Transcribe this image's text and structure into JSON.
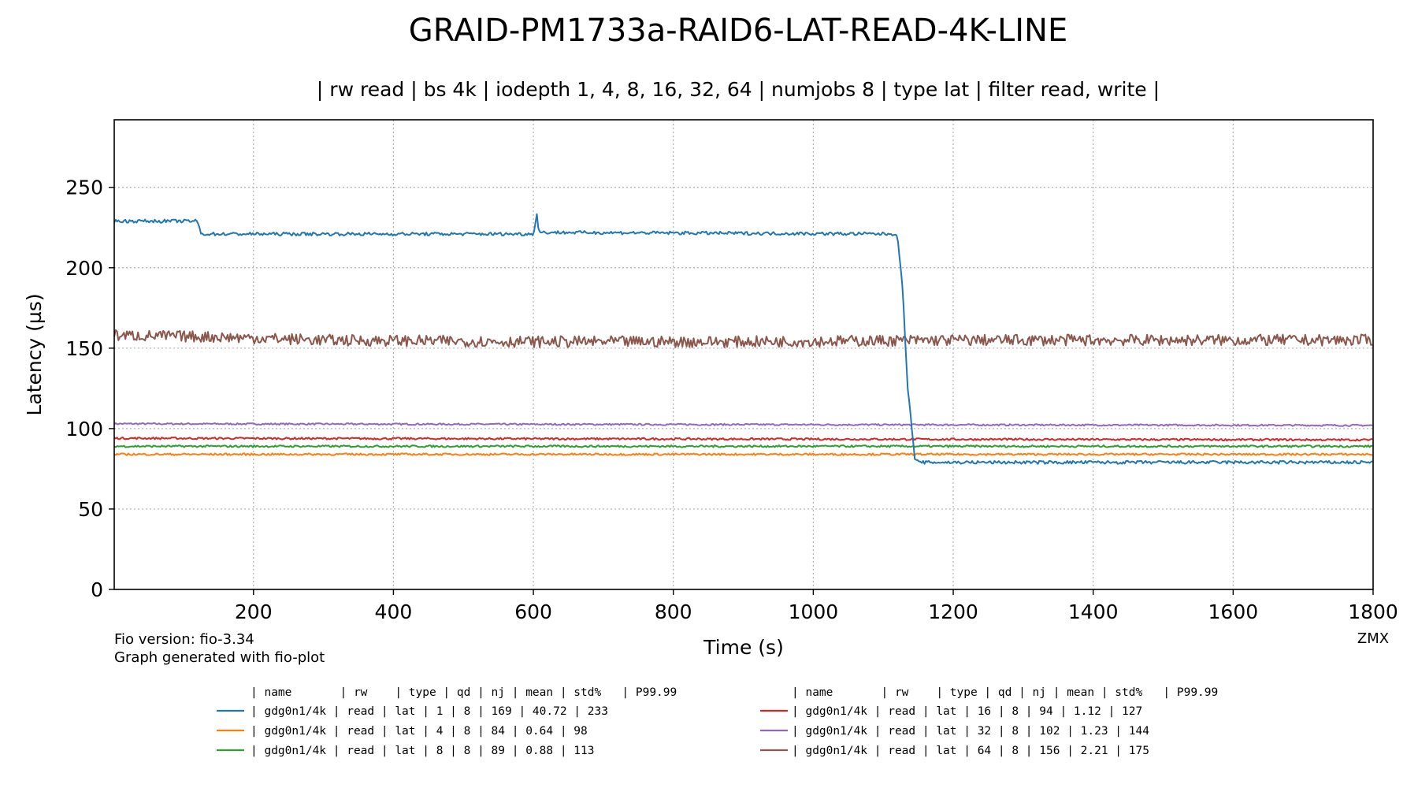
{
  "chart_data": {
    "type": "line",
    "title": "GRAID-PM1733a-RAID6-LAT-READ-4K-LINE",
    "subtitle": "| rw read | bs 4k | iodepth 1, 4, 8, 16, 32, 64 | numjobs 8 | type lat | filter read, write |",
    "xlabel": "Time (s)",
    "ylabel": "Latency (µs)",
    "xlim": [
      1,
      1800
    ],
    "ylim": [
      0,
      292
    ],
    "xticks": [
      200,
      400,
      600,
      800,
      1000,
      1200,
      1400,
      1600,
      1800
    ],
    "yticks": [
      0,
      50,
      100,
      150,
      200,
      250
    ],
    "grid": true,
    "grid_style": "dotted",
    "legend_placement": "bottom-center",
    "series": [
      {
        "name": "gdg0n1/4k qd 1",
        "color": "#1f77b4",
        "segments": [
          [
            1,
            229
          ],
          [
            120,
            229
          ],
          [
            125,
            221
          ],
          [
            600,
            221
          ],
          [
            605,
            233
          ],
          [
            608,
            222
          ],
          [
            1120,
            221
          ],
          [
            1128,
            185
          ],
          [
            1135,
            125
          ],
          [
            1145,
            82
          ],
          [
            1150,
            79
          ],
          [
            1800,
            79
          ]
        ],
        "noise": 1.0
      },
      {
        "name": "gdg0n1/4k qd 4",
        "color": "#ff7f0e",
        "segments": [
          [
            1,
            84
          ],
          [
            1800,
            84
          ]
        ],
        "noise": 0.6
      },
      {
        "name": "gdg0n1/4k qd 8",
        "color": "#2ca02c",
        "segments": [
          [
            1,
            89
          ],
          [
            1800,
            89
          ]
        ],
        "noise": 0.6
      },
      {
        "name": "gdg0n1/4k qd 16",
        "color": "#d62728",
        "segments": [
          [
            1,
            94
          ],
          [
            1800,
            93
          ]
        ],
        "noise": 0.6
      },
      {
        "name": "gdg0n1/4k qd 32",
        "color": "#9467bd",
        "segments": [
          [
            1,
            103
          ],
          [
            1800,
            102
          ]
        ],
        "noise": 0.5
      },
      {
        "name": "gdg0n1/4k qd 64",
        "color": "#8c564b",
        "segments": [
          [
            1,
            158
          ],
          [
            150,
            157
          ],
          [
            300,
            155
          ],
          [
            600,
            154
          ],
          [
            900,
            154
          ],
          [
            1200,
            155
          ],
          [
            1800,
            155
          ]
        ],
        "noise": 3.5
      }
    ],
    "footnotes": [
      "Fio version: fio-3.34",
      "Graph generated with fio-plot"
    ],
    "corner_tag": "ZMX",
    "legend_header": "| name       | rw    | type | qd | nj | mean | std%   | P99.99",
    "legend_rows": [
      {
        "color": "#1f77b4",
        "text": "|  gdg0n1/4k |  read |  lat |  1 |  8 |  169 |  40.72 |  233"
      },
      {
        "color": "#ff7f0e",
        "text": "|  gdg0n1/4k |  read |  lat |  4 |  8 |   84 |   0.64 |   98"
      },
      {
        "color": "#2ca02c",
        "text": "|  gdg0n1/4k |  read |  lat |  8 |  8 |   89 |   0.88 |  113"
      },
      {
        "color": "#d62728",
        "text": "|  gdg0n1/4k |  read |  lat | 16 |  8 |   94 |   1.12 |  127"
      },
      {
        "color": "#9467bd",
        "text": "|  gdg0n1/4k |  read |  lat | 32 |  8 |  102 |   1.23 |  144"
      },
      {
        "color": "#8c564b",
        "text": "|  gdg0n1/4k |  read |  lat | 64 |  8 |  156 |   2.21 |  175"
      }
    ]
  }
}
